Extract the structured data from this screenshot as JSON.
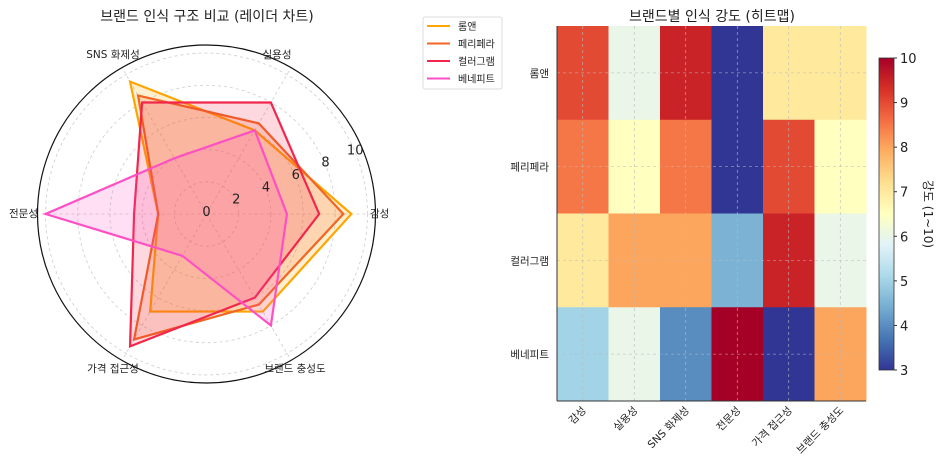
{
  "chart_data": [
    {
      "type": "radar",
      "title": "브랜드 인식 구조 비교 (레이더 차트)",
      "axes": [
        "감성",
        "실용성",
        "SNS 화제성",
        "전문성",
        "가격 접근성",
        "브랜드 충성도"
      ],
      "rticks": [
        "0",
        "2",
        "4",
        "6",
        "8",
        "10"
      ],
      "rlim": [
        0,
        10.5
      ],
      "legend_placement": "outside-right-top",
      "series": [
        {
          "name": "롬앤",
          "color": "#FFA500",
          "values": [
            9,
            6,
            9.5,
            3,
            7,
            7
          ]
        },
        {
          "name": "페리페라",
          "color": "#F26522",
          "values": [
            8.5,
            6.5,
            8.5,
            3,
            9,
            6.5
          ]
        },
        {
          "name": "컬러그램",
          "color": "#F2264B",
          "values": [
            7,
            8,
            8,
            4.5,
            9.5,
            6
          ]
        },
        {
          "name": "베네피트",
          "color": "#FF4FC4",
          "values": [
            5,
            6,
            4,
            10,
            3,
            8
          ]
        }
      ]
    },
    {
      "type": "heatmap",
      "title": "브랜드별 인식 강도 (히트맵)",
      "rows": [
        "롬앤",
        "페리페라",
        "컬러그램",
        "베네피트"
      ],
      "cols": [
        "감성",
        "실용성",
        "SNS 화제성",
        "전문성",
        "가격 접근성",
        "브랜드 충성도"
      ],
      "values": [
        [
          9,
          6,
          9.5,
          3,
          7,
          7
        ],
        [
          8.5,
          6.5,
          8.5,
          3,
          9,
          6.5
        ],
        [
          7,
          8,
          8,
          4.5,
          9.5,
          6
        ],
        [
          5,
          6,
          4,
          10,
          3,
          8
        ]
      ],
      "colormap": "RdYlBu_r",
      "vmin": 3,
      "vmax": 10,
      "colorbar_label": "강도 (1~10)",
      "colorbar_ticks": [
        "3",
        "4",
        "5",
        "6",
        "7",
        "8",
        "9",
        "10"
      ]
    }
  ]
}
